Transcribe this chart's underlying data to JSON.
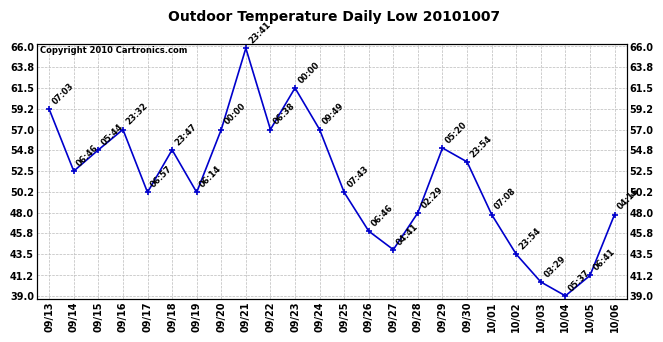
{
  "title": "Outdoor Temperature Daily Low 20101007",
  "copyright": "Copyright 2010 Cartronics.com",
  "line_color": "#0000cc",
  "marker_color": "#0000cc",
  "bg_color": "#ffffff",
  "grid_color": "#bbbbbb",
  "text_color": "#000000",
  "ylim": [
    39.0,
    66.0
  ],
  "yticks": [
    39.0,
    41.2,
    43.5,
    45.8,
    48.0,
    50.2,
    52.5,
    54.8,
    57.0,
    59.2,
    61.5,
    63.8,
    66.0
  ],
  "points": [
    {
      "date": "09/13",
      "value": 59.2,
      "label": "07:03"
    },
    {
      "date": "09/14",
      "value": 52.5,
      "label": "06:46"
    },
    {
      "date": "09/15",
      "value": 54.8,
      "label": "05:44"
    },
    {
      "date": "09/16",
      "value": 57.0,
      "label": "23:32"
    },
    {
      "date": "09/17",
      "value": 50.2,
      "label": "06:57"
    },
    {
      "date": "09/18",
      "value": 54.8,
      "label": "23:47"
    },
    {
      "date": "09/19",
      "value": 50.2,
      "label": "06:14"
    },
    {
      "date": "09/20",
      "value": 57.0,
      "label": "00:00"
    },
    {
      "date": "09/21",
      "value": 65.8,
      "label": "23:41"
    },
    {
      "date": "09/22",
      "value": 57.0,
      "label": "06:38"
    },
    {
      "date": "09/23",
      "value": 61.5,
      "label": "00:00"
    },
    {
      "date": "09/24",
      "value": 57.0,
      "label": "09:49"
    },
    {
      "date": "09/25",
      "value": 50.2,
      "label": "07:43"
    },
    {
      "date": "09/26",
      "value": 46.0,
      "label": "06:46"
    },
    {
      "date": "09/27",
      "value": 44.0,
      "label": "04:41"
    },
    {
      "date": "09/28",
      "value": 48.0,
      "label": "02:29"
    },
    {
      "date": "09/29",
      "value": 55.0,
      "label": "05:20"
    },
    {
      "date": "09/30",
      "value": 53.5,
      "label": "23:54"
    },
    {
      "date": "10/01",
      "value": 47.8,
      "label": "07:08"
    },
    {
      "date": "10/02",
      "value": 43.5,
      "label": "23:54"
    },
    {
      "date": "10/03",
      "value": 40.5,
      "label": "03:29"
    },
    {
      "date": "10/04",
      "value": 39.0,
      "label": "05:37"
    },
    {
      "date": "10/05",
      "value": 41.2,
      "label": "06:41"
    },
    {
      "date": "10/06",
      "value": 47.8,
      "label": "04:16"
    }
  ]
}
